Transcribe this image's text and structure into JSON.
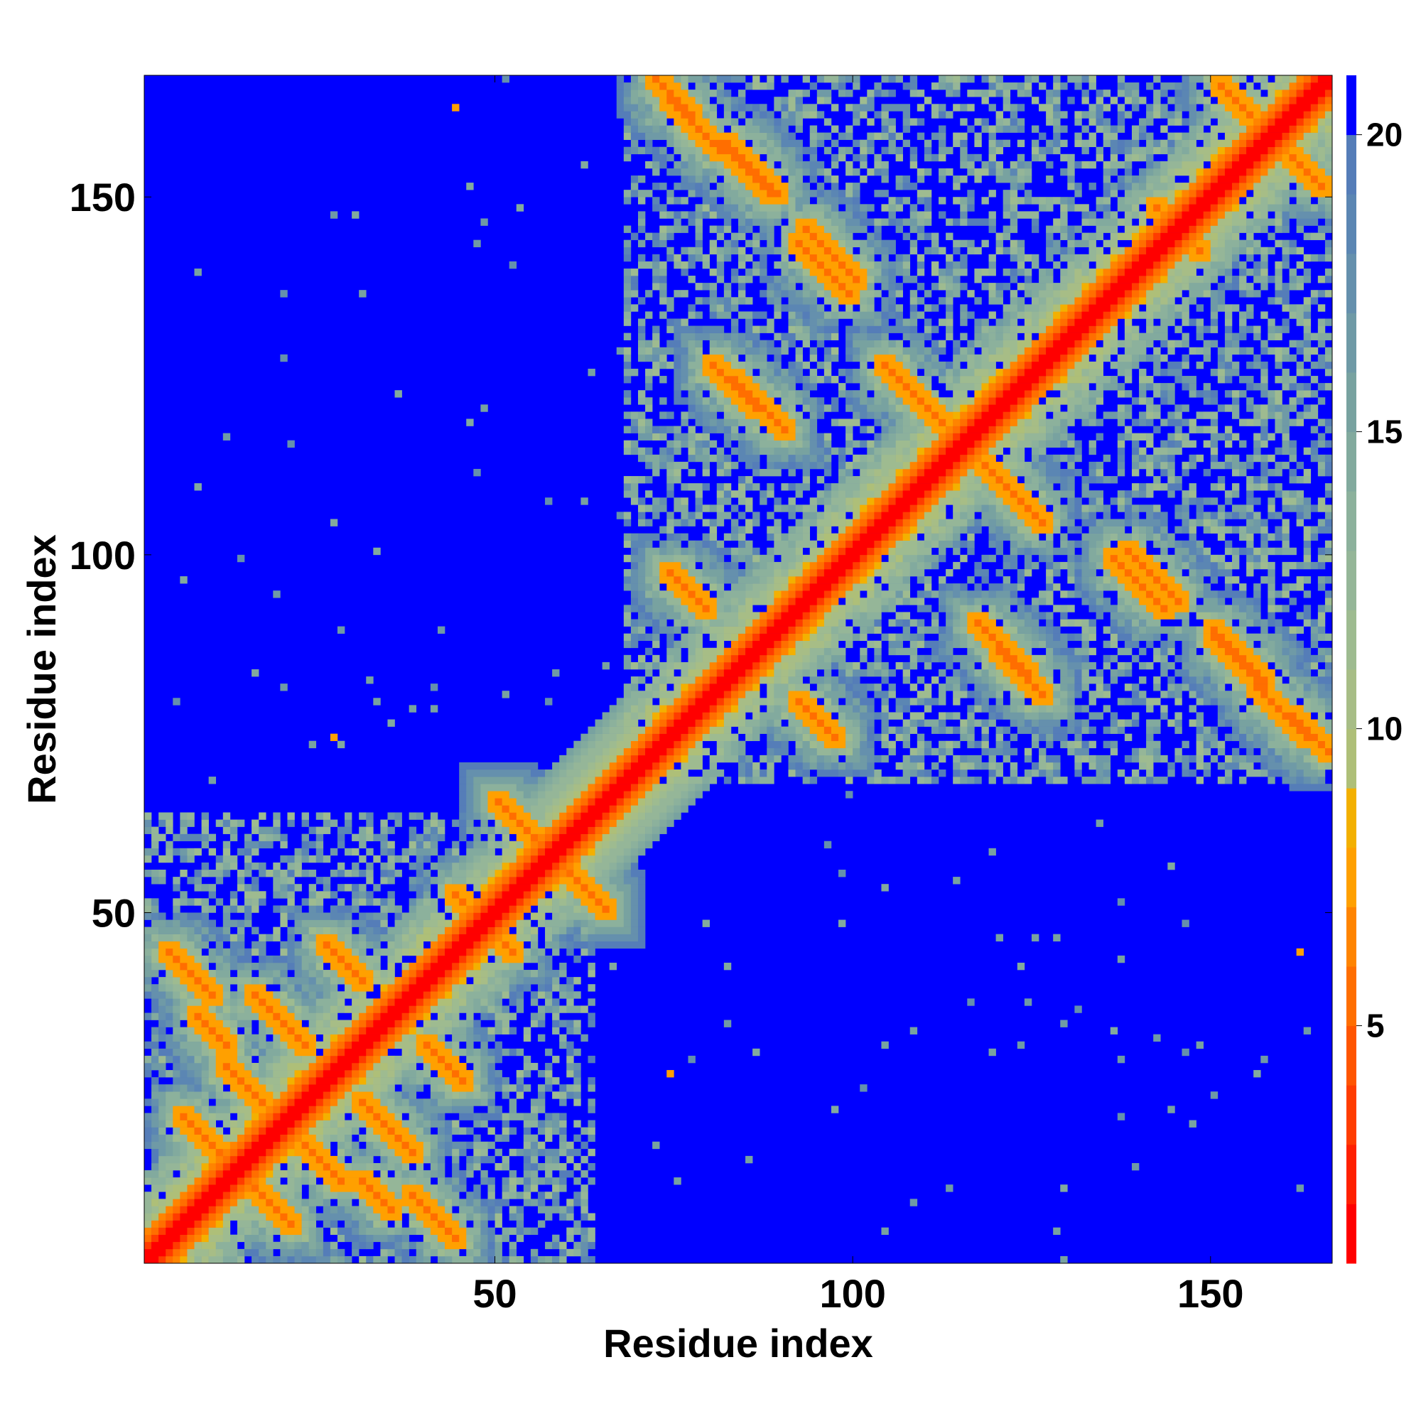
{
  "chart_data": {
    "type": "heatmap",
    "title": "",
    "xlabel": "Residue index",
    "ylabel": "Residue index",
    "n_residues": 166,
    "xlim": [
      1,
      166
    ],
    "ylim": [
      1,
      166
    ],
    "x_ticks": [
      50,
      100,
      150
    ],
    "y_ticks": [
      50,
      100,
      150
    ],
    "colorbar": {
      "range": [
        1,
        21
      ],
      "ticks": [
        5,
        10,
        15,
        20
      ],
      "levels": [
        {
          "max": 2,
          "color": "#ff0000"
        },
        {
          "max": 3,
          "color": "#ff2000"
        },
        {
          "max": 4,
          "color": "#ff3c00"
        },
        {
          "max": 5,
          "color": "#ff5500"
        },
        {
          "max": 6,
          "color": "#ff6e00"
        },
        {
          "max": 7,
          "color": "#ff8400"
        },
        {
          "max": 8,
          "color": "#ffa000"
        },
        {
          "max": 9,
          "color": "#f3b000"
        },
        {
          "max": 10,
          "color": "#aebf78"
        },
        {
          "max": 11,
          "color": "#a7bd86"
        },
        {
          "max": 12,
          "color": "#9ebb90"
        },
        {
          "max": 13,
          "color": "#95b698"
        },
        {
          "max": 14,
          "color": "#8cb19c"
        },
        {
          "max": 15,
          "color": "#82aa9e"
        },
        {
          "max": 16,
          "color": "#78a2a0"
        },
        {
          "max": 17,
          "color": "#6f9aa6"
        },
        {
          "max": 18,
          "color": "#6590ad"
        },
        {
          "max": 19,
          "color": "#5b86b3"
        },
        {
          "max": 20,
          "color": "#557db8"
        },
        {
          "max": 21,
          "color": "#0000ff"
        }
      ]
    },
    "domains": [
      [
        1,
        63
      ],
      [
        68,
        166
      ]
    ],
    "contact_bands": [
      {
        "i": 4,
        "j": 44,
        "len": 7,
        "dir": "anti"
      },
      {
        "i": 6,
        "j": 21,
        "len": 6,
        "dir": "anti"
      },
      {
        "i": 8,
        "j": 35,
        "len": 5,
        "dir": "anti"
      },
      {
        "i": 12,
        "j": 28,
        "len": 7,
        "dir": "anti"
      },
      {
        "i": 16,
        "j": 38,
        "len": 8,
        "dir": "anti"
      },
      {
        "i": 26,
        "j": 45,
        "len": 6,
        "dir": "anti"
      },
      {
        "i": 44,
        "j": 52,
        "len": 8,
        "dir": "anti"
      },
      {
        "i": 50,
        "j": 65,
        "len": 6,
        "dir": "anti"
      },
      {
        "i": 74,
        "j": 97,
        "len": 6,
        "dir": "anti"
      },
      {
        "i": 72,
        "j": 166,
        "len": 6,
        "dir": "anti"
      },
      {
        "i": 80,
        "j": 126,
        "len": 7,
        "dir": "anti"
      },
      {
        "i": 82,
        "j": 157,
        "len": 8,
        "dir": "anti"
      },
      {
        "i": 92,
        "j": 143,
        "len": 8,
        "dir": "anti"
      },
      {
        "i": 104,
        "j": 126,
        "len": 7,
        "dir": "anti"
      },
      {
        "i": 118,
        "j": 112,
        "len": 8,
        "dir": "anti"
      },
      {
        "i": 117,
        "j": 90,
        "len": 8,
        "dir": "anti"
      },
      {
        "i": 138,
        "j": 100,
        "len": 8,
        "dir": "anti"
      },
      {
        "i": 150,
        "j": 88,
        "len": 8,
        "dir": "anti"
      },
      {
        "i": 156,
        "j": 81,
        "len": 8,
        "dir": "anti"
      },
      {
        "i": 151,
        "j": 165,
        "len": 6,
        "dir": "anti"
      },
      {
        "i": 142,
        "j": 148,
        "len": 5,
        "dir": "anti"
      }
    ],
    "isolated_contacts": [
      {
        "i": 44,
        "j": 162
      },
      {
        "i": 162,
        "j": 44
      },
      {
        "i": 27,
        "j": 74
      },
      {
        "i": 74,
        "j": 27
      }
    ],
    "grid": false,
    "legend": "none"
  }
}
